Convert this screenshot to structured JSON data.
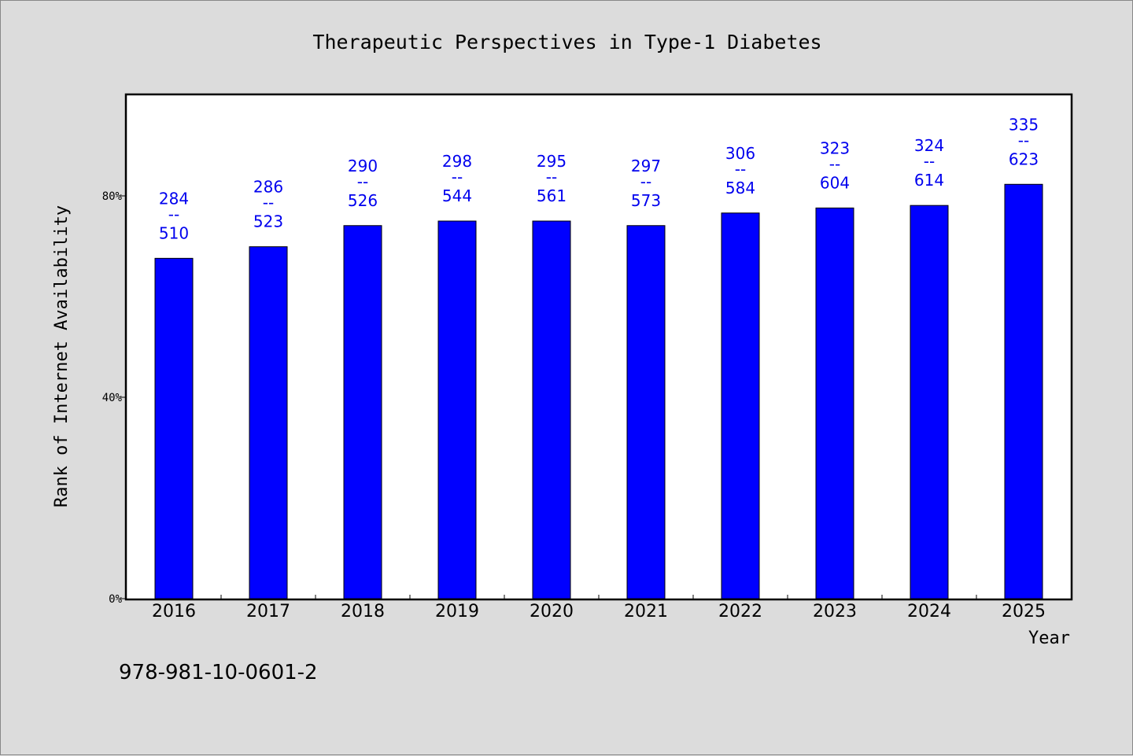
{
  "chart_data": {
    "type": "bar",
    "title": "Therapeutic Perspectives in Type-1 Diabetes",
    "xlabel": "Year",
    "ylabel": "Rank of Internet Availability",
    "ylim": [
      0,
      100
    ],
    "yticks": [
      {
        "value": 0,
        "label": "0%"
      },
      {
        "value": 40,
        "label": "40%"
      },
      {
        "value": 80,
        "label": "80%"
      }
    ],
    "categories": [
      "2016",
      "2017",
      "2018",
      "2019",
      "2020",
      "2021",
      "2022",
      "2023",
      "2024",
      "2025"
    ],
    "values": [
      67.6,
      69.9,
      74.1,
      75.0,
      75.0,
      74.1,
      76.6,
      77.6,
      78.1,
      82.3
    ],
    "data_labels": [
      {
        "top": "284",
        "sep": "--",
        "bottom": "510"
      },
      {
        "top": "286",
        "sep": "--",
        "bottom": "523"
      },
      {
        "top": "290",
        "sep": "--",
        "bottom": "526"
      },
      {
        "top": "298",
        "sep": "--",
        "bottom": "544"
      },
      {
        "top": "295",
        "sep": "--",
        "bottom": "561"
      },
      {
        "top": "297",
        "sep": "--",
        "bottom": "573"
      },
      {
        "top": "306",
        "sep": "--",
        "bottom": "584"
      },
      {
        "top": "323",
        "sep": "--",
        "bottom": "604"
      },
      {
        "top": "324",
        "sep": "--",
        "bottom": "614"
      },
      {
        "top": "335",
        "sep": "--",
        "bottom": "623"
      }
    ],
    "bar_color": "#0000ff",
    "label_color": "#0000ee",
    "plot_background": "#ffffff",
    "page_background": "#dcdcdc",
    "grid": false,
    "legend": "none"
  },
  "footer": {
    "isbn": "978-981-10-0601-2"
  }
}
